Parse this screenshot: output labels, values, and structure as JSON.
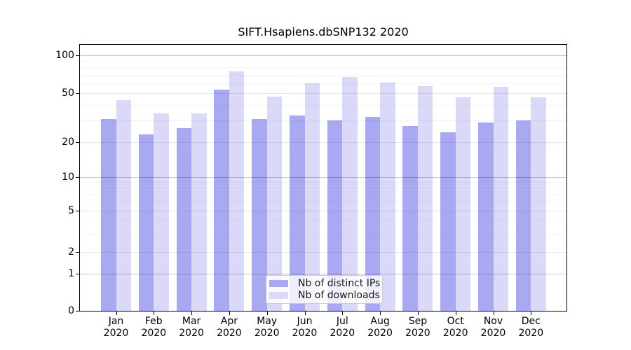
{
  "chart_data": {
    "type": "bar",
    "title": "SIFT.Hsapiens.dbSNP132 2020",
    "xlabel": "",
    "ylabel": "",
    "yscale": "symlog",
    "grid": true,
    "legend_position": "lower center",
    "months": [
      "Jan",
      "Feb",
      "Mar",
      "Apr",
      "May",
      "Jun",
      "Jul",
      "Aug",
      "Sep",
      "Oct",
      "Nov",
      "Dec"
    ],
    "year": "2020",
    "yticks": [
      0,
      1,
      2,
      5,
      10,
      20,
      50,
      100
    ],
    "minor_yticks": [
      3,
      4,
      6,
      7,
      8,
      9,
      30,
      40,
      60,
      70,
      80,
      90
    ],
    "ylim": [
      0,
      120
    ],
    "series": [
      {
        "name": "Nb of distinct IPs",
        "color": "#a9a9f2",
        "values": [
          31,
          23,
          26,
          53,
          31,
          33,
          30,
          32,
          27,
          24,
          29,
          30
        ]
      },
      {
        "name": "Nb of downloads",
        "color": "#dadaf8",
        "values": [
          44,
          34,
          34,
          74,
          47,
          60,
          67,
          61,
          57,
          46,
          56,
          46
        ]
      }
    ]
  }
}
